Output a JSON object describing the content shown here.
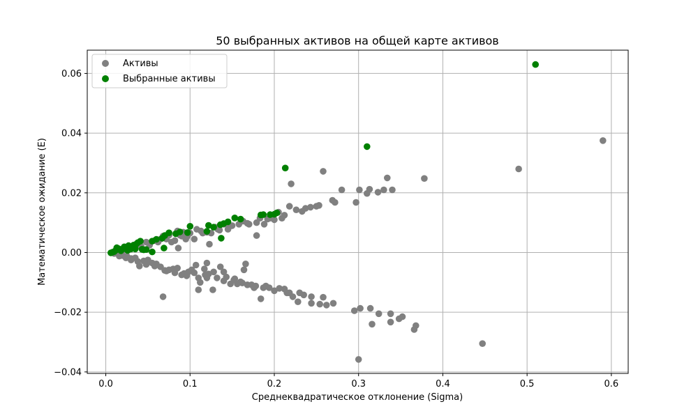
{
  "chart_data": {
    "type": "scatter",
    "title": "50 выбранных активов на общей карте активов",
    "xlabel": "Среднеквадратическое отклонение (Sigma)",
    "ylabel": "Математическое ожидание (E)",
    "xlim": [
      -0.022,
      0.62
    ],
    "ylim": [
      -0.0405,
      0.0678
    ],
    "xticks": [
      0.0,
      0.1,
      0.2,
      0.3,
      0.4,
      0.5,
      0.6
    ],
    "xtick_labels": [
      "0.0",
      "0.1",
      "0.2",
      "0.3",
      "0.4",
      "0.5",
      "0.6"
    ],
    "yticks": [
      -0.04,
      -0.02,
      0.0,
      0.02,
      0.04,
      0.06
    ],
    "ytick_labels": [
      "−0.04",
      "−0.02",
      "0.00",
      "0.02",
      "0.04",
      "0.06"
    ],
    "grid": true,
    "legend_position": "top-left",
    "series": [
      {
        "name": "Активы",
        "color": "#808080",
        "points": [
          [
            0.59,
            0.0375
          ],
          [
            0.49,
            0.028
          ],
          [
            0.447,
            -0.0305
          ],
          [
            0.378,
            0.0248
          ],
          [
            0.368,
            -0.0245
          ],
          [
            0.366,
            -0.0258
          ],
          [
            0.352,
            -0.0215
          ],
          [
            0.348,
            -0.0222
          ],
          [
            0.338,
            -0.0205
          ],
          [
            0.338,
            -0.0233
          ],
          [
            0.34,
            0.021
          ],
          [
            0.334,
            0.025
          ],
          [
            0.33,
            0.021
          ],
          [
            0.324,
            -0.0205
          ],
          [
            0.323,
            0.0202
          ],
          [
            0.316,
            -0.024
          ],
          [
            0.314,
            -0.0187
          ],
          [
            0.313,
            0.0212
          ],
          [
            0.31,
            0.0198
          ],
          [
            0.302,
            -0.0187
          ],
          [
            0.301,
            0.021
          ],
          [
            0.3,
            -0.0358
          ],
          [
            0.297,
            0.0168
          ],
          [
            0.295,
            -0.0195
          ],
          [
            0.28,
            0.021
          ],
          [
            0.272,
            0.0168
          ],
          [
            0.269,
            0.0175
          ],
          [
            0.27,
            -0.017
          ],
          [
            0.262,
            -0.0176
          ],
          [
            0.258,
            0.0272
          ],
          [
            0.258,
            -0.015
          ],
          [
            0.253,
            0.0158
          ],
          [
            0.254,
            -0.0173
          ],
          [
            0.25,
            0.0155
          ],
          [
            0.244,
            -0.0148
          ],
          [
            0.244,
            -0.017
          ],
          [
            0.243,
            0.0152
          ],
          [
            0.237,
            0.0148
          ],
          [
            0.23,
            -0.0135
          ],
          [
            0.228,
            -0.0165
          ],
          [
            0.226,
            0.0143
          ],
          [
            0.222,
            -0.0148
          ],
          [
            0.22,
            0.023
          ],
          [
            0.218,
            0.0155
          ],
          [
            0.218,
            -0.0135
          ],
          [
            0.212,
            -0.0122
          ],
          [
            0.209,
            0.0115
          ],
          [
            0.206,
            -0.012
          ],
          [
            0.205,
            0.0135
          ],
          [
            0.2,
            0.011
          ],
          [
            0.2,
            -0.0128
          ],
          [
            0.195,
            0.0115
          ],
          [
            0.194,
            -0.0118
          ],
          [
            0.188,
            0.0095
          ],
          [
            0.187,
            -0.0118
          ],
          [
            0.184,
            -0.0155
          ],
          [
            0.183,
            0.0115
          ],
          [
            0.179,
            0.01
          ],
          [
            0.179,
            0.0057
          ],
          [
            0.178,
            -0.0112
          ],
          [
            0.176,
            -0.0118
          ],
          [
            0.17,
            0.0095
          ],
          [
            0.168,
            -0.0108
          ],
          [
            0.166,
            -0.0038
          ],
          [
            0.164,
            -0.0058
          ],
          [
            0.163,
            0.0105
          ],
          [
            0.16,
            -0.0098
          ],
          [
            0.158,
            0.0095
          ],
          [
            0.156,
            -0.0105
          ],
          [
            0.153,
            -0.0088
          ],
          [
            0.15,
            0.009
          ],
          [
            0.148,
            -0.0105
          ],
          [
            0.145,
            0.0078
          ],
          [
            0.14,
            -0.0095
          ],
          [
            0.14,
            0.0095
          ],
          [
            0.14,
            -0.0065
          ],
          [
            0.136,
            -0.0048
          ],
          [
            0.135,
            0.0075
          ],
          [
            0.132,
            -0.0085
          ],
          [
            0.13,
            0.0085
          ],
          [
            0.127,
            -0.0125
          ],
          [
            0.125,
            0.0065
          ],
          [
            0.123,
            0.0028
          ],
          [
            0.122,
            -0.0072
          ],
          [
            0.12,
            -0.0085
          ],
          [
            0.12,
            0.0068
          ],
          [
            0.12,
            -0.0035
          ],
          [
            0.118,
            -0.0075
          ],
          [
            0.115,
            0.0065
          ],
          [
            0.113,
            0.0072
          ],
          [
            0.112,
            -0.01
          ],
          [
            0.11,
            -0.0125
          ],
          [
            0.108,
            0.0078
          ],
          [
            0.105,
            0.0045
          ],
          [
            0.105,
            -0.0068
          ],
          [
            0.102,
            -0.0058
          ],
          [
            0.1,
            0.0065
          ],
          [
            0.098,
            -0.0065
          ],
          [
            0.095,
            0.0045
          ],
          [
            0.093,
            -0.007
          ],
          [
            0.09,
            0.0055
          ],
          [
            0.09,
            -0.0075
          ],
          [
            0.088,
            0.0058
          ],
          [
            0.086,
            0.0015
          ],
          [
            0.085,
            -0.0052
          ],
          [
            0.082,
            0.004
          ],
          [
            0.08,
            -0.0055
          ],
          [
            0.078,
            0.0035
          ],
          [
            0.075,
            -0.0058
          ],
          [
            0.072,
            0.0045
          ],
          [
            0.07,
            -0.006
          ],
          [
            0.068,
            -0.0148
          ],
          [
            0.065,
            0.0045
          ],
          [
            0.065,
            -0.0048
          ],
          [
            0.062,
            0.0035
          ],
          [
            0.06,
            -0.0038
          ],
          [
            0.058,
            0.004
          ],
          [
            0.055,
            -0.0035
          ],
          [
            0.052,
            0.0025
          ],
          [
            0.05,
            -0.0025
          ],
          [
            0.048,
            0.0035
          ],
          [
            0.045,
            -0.0028
          ],
          [
            0.042,
            0.002
          ],
          [
            0.04,
            -0.0045
          ],
          [
            0.038,
            0.0025
          ],
          [
            0.035,
            -0.0018
          ],
          [
            0.032,
            0.0015
          ],
          [
            0.03,
            -0.002
          ],
          [
            0.028,
            0.0012
          ],
          [
            0.025,
            -0.0012
          ],
          [
            0.022,
            0.001
          ],
          [
            0.02,
            -0.001
          ],
          [
            0.018,
            0.0008
          ],
          [
            0.015,
            -0.0005
          ],
          [
            0.012,
            0.0005
          ],
          [
            0.01,
            -0.0003
          ],
          [
            0.085,
            0.0072
          ],
          [
            0.092,
            0.0068
          ],
          [
            0.097,
            0.0055
          ],
          [
            0.107,
            -0.0042
          ],
          [
            0.117,
            -0.0055
          ],
          [
            0.128,
            -0.0065
          ],
          [
            0.143,
            -0.0082
          ],
          [
            0.152,
            -0.0092
          ],
          [
            0.162,
            -0.0102
          ],
          [
            0.173,
            -0.0108
          ],
          [
            0.19,
            -0.0112
          ],
          [
            0.215,
            -0.0135
          ],
          [
            0.235,
            -0.0142
          ],
          [
            0.075,
            0.0058
          ],
          [
            0.068,
            0.0055
          ],
          [
            0.058,
            -0.0045
          ],
          [
            0.048,
            -0.004
          ],
          [
            0.038,
            -0.003
          ],
          [
            0.03,
            -0.0025
          ],
          [
            0.024,
            -0.0018
          ],
          [
            0.016,
            -0.0012
          ],
          [
            0.072,
            -0.0062
          ],
          [
            0.082,
            -0.0068
          ],
          [
            0.096,
            -0.0078
          ],
          [
            0.11,
            -0.0085
          ],
          [
            0.133,
            0.0078
          ],
          [
            0.147,
            0.0088
          ],
          [
            0.168,
            0.0098
          ],
          [
            0.192,
            0.0112
          ],
          [
            0.212,
            0.0125
          ],
          [
            0.233,
            0.0138
          ]
        ]
      },
      {
        "name": "Выбранные активы",
        "color": "#008000",
        "points": [
          [
            0.51,
            0.063
          ],
          [
            0.31,
            0.0355
          ],
          [
            0.213,
            0.0283
          ],
          [
            0.203,
            0.0133
          ],
          [
            0.2,
            0.0128
          ],
          [
            0.187,
            0.0127
          ],
          [
            0.184,
            0.0126
          ],
          [
            0.153,
            0.0116
          ],
          [
            0.145,
            0.0103
          ],
          [
            0.14,
            0.0097
          ],
          [
            0.136,
            0.0093
          ],
          [
            0.137,
            0.0048
          ],
          [
            0.122,
            0.0091
          ],
          [
            0.1,
            0.0088
          ],
          [
            0.097,
            0.0067
          ],
          [
            0.083,
            0.0063
          ],
          [
            0.07,
            0.0057
          ],
          [
            0.067,
            0.0048
          ],
          [
            0.069,
            0.0015
          ],
          [
            0.055,
            0.0038
          ],
          [
            0.055,
            0.0002
          ],
          [
            0.048,
            0.001
          ],
          [
            0.041,
            0.0038
          ],
          [
            0.038,
            0.0033
          ],
          [
            0.035,
            0.0012
          ],
          [
            0.033,
            0.0025
          ],
          [
            0.03,
            0.0012
          ],
          [
            0.027,
            0.0023
          ],
          [
            0.025,
            0.0015
          ],
          [
            0.02,
            0.0012
          ],
          [
            0.018,
            0.0006
          ],
          [
            0.015,
            0.0013
          ],
          [
            0.012,
            0.0008
          ],
          [
            0.01,
            0.0003
          ],
          [
            0.008,
            0.0001
          ],
          [
            0.006,
            -0.0001
          ],
          [
            0.013,
            0.0016
          ],
          [
            0.022,
            0.0019
          ],
          [
            0.026,
            0.0007
          ],
          [
            0.031,
            0.0019
          ],
          [
            0.036,
            0.0028
          ],
          [
            0.043,
            0.0011
          ],
          [
            0.06,
            0.0044
          ],
          [
            0.075,
            0.0066
          ],
          [
            0.088,
            0.0069
          ],
          [
            0.12,
            0.0071
          ],
          [
            0.128,
            0.0085
          ],
          [
            0.16,
            0.0112
          ],
          [
            0.195,
            0.0127
          ],
          [
            0.045,
            0.0009
          ]
        ]
      }
    ]
  }
}
